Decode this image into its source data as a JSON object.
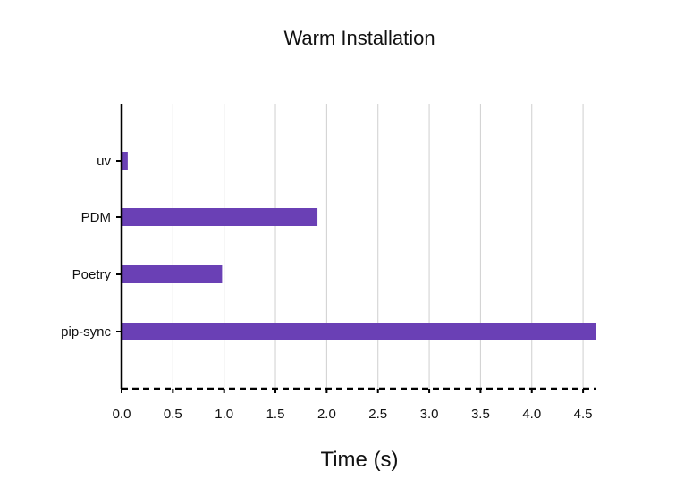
{
  "chart_data": {
    "type": "bar",
    "orientation": "horizontal",
    "title": "Warm Installation",
    "xlabel": "Time (s)",
    "ylabel": "",
    "categories": [
      "uv",
      "PDM",
      "Poetry",
      "pip-sync"
    ],
    "values": [
      0.06,
      1.91,
      0.98,
      4.63
    ],
    "xlim": [
      0,
      4.63
    ],
    "xticks": [
      "0.0",
      "0.5",
      "1.0",
      "1.5",
      "2.0",
      "2.5",
      "3.0",
      "3.5",
      "4.0",
      "4.5"
    ],
    "grid": "vertical",
    "legend": "none",
    "colors": {
      "bar": "#6a40b5",
      "grid": "#cfcfcf",
      "axis": "#000000"
    }
  }
}
